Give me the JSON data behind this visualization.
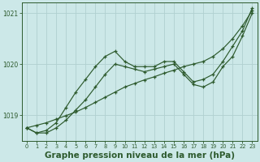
{
  "background_color": "#cce8e8",
  "line_color": "#2d5a2d",
  "grid_color": "#b0d0d0",
  "xlabel": "Graphe pression niveau de la mer (hPa)",
  "xlabel_fontsize": 7.5,
  "ylim": [
    1018.5,
    1021.2
  ],
  "xlim": [
    -0.5,
    23.5
  ],
  "yticks": [
    1019,
    1020,
    1021
  ],
  "xticks": [
    0,
    1,
    2,
    3,
    4,
    5,
    6,
    7,
    8,
    9,
    10,
    11,
    12,
    13,
    14,
    15,
    16,
    17,
    18,
    19,
    20,
    21,
    22,
    23
  ],
  "series1_x": [
    0,
    1,
    2,
    3,
    4,
    5,
    6,
    7,
    8,
    9,
    10,
    11,
    12,
    13,
    14,
    15,
    16,
    17,
    18,
    19,
    20,
    21,
    22,
    23
  ],
  "series1_y": [
    1018.75,
    1018.65,
    1018.7,
    1018.85,
    1019.15,
    1019.45,
    1019.7,
    1019.95,
    1020.15,
    1020.25,
    1020.05,
    1019.95,
    1019.95,
    1019.95,
    1020.05,
    1020.05,
    1019.85,
    1019.65,
    1019.7,
    1019.8,
    1020.05,
    1020.35,
    1020.65,
    1021.1
  ],
  "series2_x": [
    0,
    1,
    2,
    3,
    4,
    5,
    6,
    7,
    8,
    9,
    10,
    11,
    12,
    13,
    14,
    15,
    16,
    17,
    18,
    19,
    20,
    21,
    22,
    23
  ],
  "series2_y": [
    1018.75,
    1018.65,
    1018.65,
    1018.75,
    1018.9,
    1019.1,
    1019.3,
    1019.55,
    1019.8,
    1020.0,
    1019.95,
    1019.9,
    1019.85,
    1019.9,
    1019.95,
    1020.0,
    1019.8,
    1019.6,
    1019.55,
    1019.65,
    1019.95,
    1020.15,
    1020.55,
    1021.0
  ],
  "series3_x": [
    0,
    1,
    2,
    3,
    4,
    5,
    6,
    7,
    8,
    9,
    10,
    11,
    12,
    13,
    14,
    15,
    16,
    17,
    18,
    19,
    20,
    21,
    22,
    23
  ],
  "series3_y": [
    1018.75,
    1018.8,
    1018.85,
    1018.92,
    1018.99,
    1019.06,
    1019.15,
    1019.25,
    1019.35,
    1019.45,
    1019.55,
    1019.62,
    1019.69,
    1019.75,
    1019.82,
    1019.88,
    1019.95,
    1020.0,
    1020.05,
    1020.15,
    1020.3,
    1020.5,
    1020.75,
    1021.05
  ]
}
